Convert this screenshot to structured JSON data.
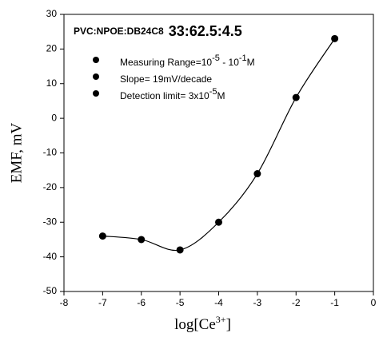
{
  "chart_data": {
    "type": "scatter",
    "title": "PVC:NPOE:DB24C8",
    "subtitle": "33:62.5:4.5",
    "annotations": [
      [
        {
          "text": "Measuring Range=10"
        },
        {
          "text": "-5",
          "sup": true
        },
        {
          "text": " - 10"
        },
        {
          "text": "-1",
          "sup": true
        },
        {
          "text": "M"
        }
      ],
      [
        {
          "text": "Slope= 19mV/decade"
        }
      ],
      [
        {
          "text": "Detection limit= 3x10"
        },
        {
          "text": "-5",
          "sup": true
        },
        {
          "text": "M"
        }
      ]
    ],
    "x_label": [
      {
        "text": "log[Ce"
      },
      {
        "text": "3+",
        "sup": true
      },
      {
        "text": "]"
      }
    ],
    "y_label": "EMF, mV",
    "x": [
      -7,
      -6,
      -5,
      -4,
      -3,
      -2,
      -1
    ],
    "series": [
      {
        "color": "#000000",
        "values": [
          -34,
          -35,
          -38,
          -30,
          -16,
          6,
          23
        ]
      }
    ],
    "fit_curve": true,
    "xlim": [
      -8,
      0
    ],
    "xticks": [
      -8,
      -7,
      -6,
      -5,
      -4,
      -3,
      -2,
      -1,
      0
    ],
    "ylim": [
      -50,
      30
    ],
    "yticks": [
      -50,
      -40,
      -30,
      -20,
      -10,
      0,
      10,
      20,
      30
    ]
  }
}
